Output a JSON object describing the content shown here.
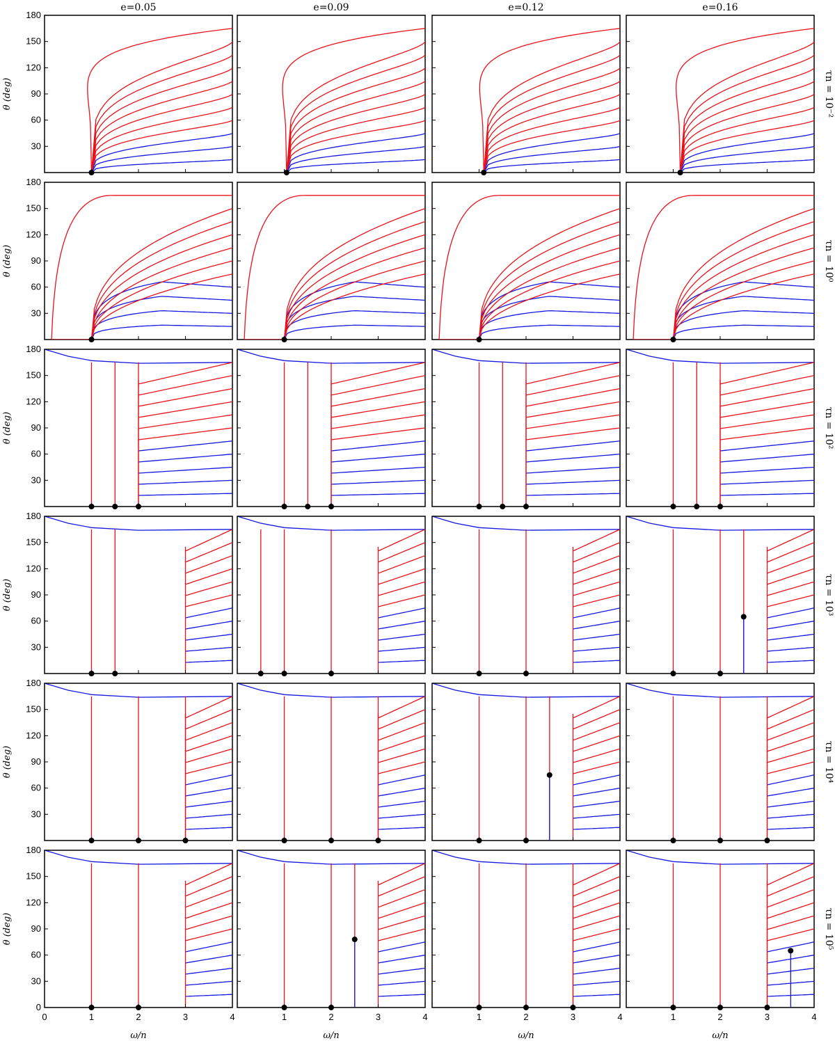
{
  "figure": {
    "ylabel": "θ (deg)",
    "xlabel": "ω/n",
    "x_ticks": [
      0,
      1,
      2,
      3,
      4
    ],
    "y_ticks": [
      30,
      60,
      90,
      120,
      150,
      180
    ],
    "y_ticks_bottom_row": [
      0,
      30,
      60,
      90,
      120,
      150,
      180
    ],
    "xlim": [
      0,
      4
    ],
    "ylim": [
      0,
      180
    ],
    "colors": {
      "aligned": "#e8121a",
      "misaligned": "#1417e0",
      "point": "#000000",
      "frame": "#000000"
    },
    "column_titles": [
      "e=0.05",
      "e=0.09",
      "e=0.12",
      "e=0.16"
    ],
    "row_titles": [
      "τn = 10⁻²",
      "τn = 10⁰",
      "τn = 10²",
      "τn = 10³",
      "τn = 10⁴",
      "τn = 10⁵"
    ]
  },
  "chart_data": {
    "type": "line",
    "description_of_series": "Each panel shows evolution tracks of obliquity θ versus spin ratio ω/n starting from ω/n=4 at θ from 15 to 165 deg; red tracks end at θ≈0 equilibria, blue tracks remain misaligned.",
    "start_angles": [
      15,
      30,
      45,
      60,
      75,
      90,
      105,
      120,
      135,
      150,
      165
    ],
    "panels": [
      {
        "row": 0,
        "col": 0,
        "equilibria": [
          [
            1.0,
            0
          ]
        ],
        "pattern": "converge",
        "blue_from": 45
      },
      {
        "row": 0,
        "col": 1,
        "equilibria": [
          [
            1.05,
            0
          ]
        ],
        "pattern": "converge",
        "blue_from": 45
      },
      {
        "row": 0,
        "col": 2,
        "equilibria": [
          [
            1.1,
            0
          ]
        ],
        "pattern": "converge",
        "blue_from": 45
      },
      {
        "row": 0,
        "col": 3,
        "equilibria": [
          [
            1.15,
            0
          ]
        ],
        "pattern": "converge",
        "blue_from": 45
      },
      {
        "row": 1,
        "col": 0,
        "equilibria": [
          [
            1.0,
            0
          ]
        ],
        "pattern": "converge_loop",
        "blue_from": 60
      },
      {
        "row": 1,
        "col": 1,
        "equilibria": [
          [
            1.0,
            0
          ]
        ],
        "pattern": "converge_loop",
        "blue_from": 60
      },
      {
        "row": 1,
        "col": 2,
        "equilibria": [
          [
            1.0,
            0
          ]
        ],
        "pattern": "converge_loop",
        "blue_from": 60
      },
      {
        "row": 1,
        "col": 3,
        "equilibria": [
          [
            1.0,
            0
          ]
        ],
        "pattern": "converge_loop",
        "blue_from": 60
      },
      {
        "row": 2,
        "col": 0,
        "equilibria": [
          [
            1.0,
            0
          ],
          [
            1.5,
            0
          ],
          [
            2.0,
            0
          ]
        ],
        "pattern": "steps"
      },
      {
        "row": 2,
        "col": 1,
        "equilibria": [
          [
            1.0,
            0
          ],
          [
            1.5,
            0
          ],
          [
            2.0,
            0
          ]
        ],
        "pattern": "steps"
      },
      {
        "row": 2,
        "col": 2,
        "equilibria": [
          [
            1.0,
            0
          ],
          [
            1.5,
            0
          ],
          [
            2.0,
            0
          ]
        ],
        "pattern": "steps"
      },
      {
        "row": 2,
        "col": 3,
        "equilibria": [
          [
            1.0,
            0
          ],
          [
            1.5,
            0
          ],
          [
            2.0,
            0
          ]
        ],
        "pattern": "steps"
      },
      {
        "row": 3,
        "col": 0,
        "equilibria": [
          [
            1.0,
            0
          ],
          [
            1.5,
            0
          ]
        ],
        "pattern": "steps"
      },
      {
        "row": 3,
        "col": 1,
        "equilibria": [
          [
            0.5,
            0
          ],
          [
            1.0,
            0
          ],
          [
            2.0,
            0
          ]
        ],
        "pattern": "steps"
      },
      {
        "row": 3,
        "col": 2,
        "equilibria": [
          [
            1.0,
            0
          ],
          [
            2.0,
            0
          ]
        ],
        "pattern": "steps"
      },
      {
        "row": 3,
        "col": 3,
        "equilibria": [
          [
            1.0,
            0
          ],
          [
            2.0,
            0
          ],
          [
            2.5,
            65
          ]
        ],
        "pattern": "steps"
      },
      {
        "row": 4,
        "col": 0,
        "equilibria": [
          [
            1.0,
            0
          ],
          [
            2.0,
            0
          ],
          [
            3.0,
            0
          ]
        ],
        "pattern": "steps"
      },
      {
        "row": 4,
        "col": 1,
        "equilibria": [
          [
            1.0,
            0
          ],
          [
            2.0,
            0
          ],
          [
            3.0,
            0
          ]
        ],
        "pattern": "steps"
      },
      {
        "row": 4,
        "col": 2,
        "equilibria": [
          [
            1.0,
            0
          ],
          [
            2.0,
            0
          ],
          [
            2.5,
            75
          ]
        ],
        "pattern": "steps"
      },
      {
        "row": 4,
        "col": 3,
        "equilibria": [
          [
            1.0,
            0
          ],
          [
            2.0,
            0
          ],
          [
            3.0,
            0
          ]
        ],
        "pattern": "steps"
      },
      {
        "row": 5,
        "col": 0,
        "equilibria": [
          [
            1.0,
            0
          ],
          [
            2.0,
            0
          ]
        ],
        "pattern": "steps"
      },
      {
        "row": 5,
        "col": 1,
        "equilibria": [
          [
            1.0,
            0
          ],
          [
            2.0,
            0
          ],
          [
            2.5,
            78
          ]
        ],
        "pattern": "steps"
      },
      {
        "row": 5,
        "col": 2,
        "equilibria": [
          [
            1.0,
            0
          ],
          [
            2.0,
            0
          ],
          [
            3.0,
            0
          ]
        ],
        "pattern": "steps"
      },
      {
        "row": 5,
        "col": 3,
        "equilibria": [
          [
            1.0,
            0
          ],
          [
            2.0,
            0
          ],
          [
            3.0,
            0
          ],
          [
            3.5,
            65
          ]
        ],
        "pattern": "steps"
      }
    ]
  }
}
